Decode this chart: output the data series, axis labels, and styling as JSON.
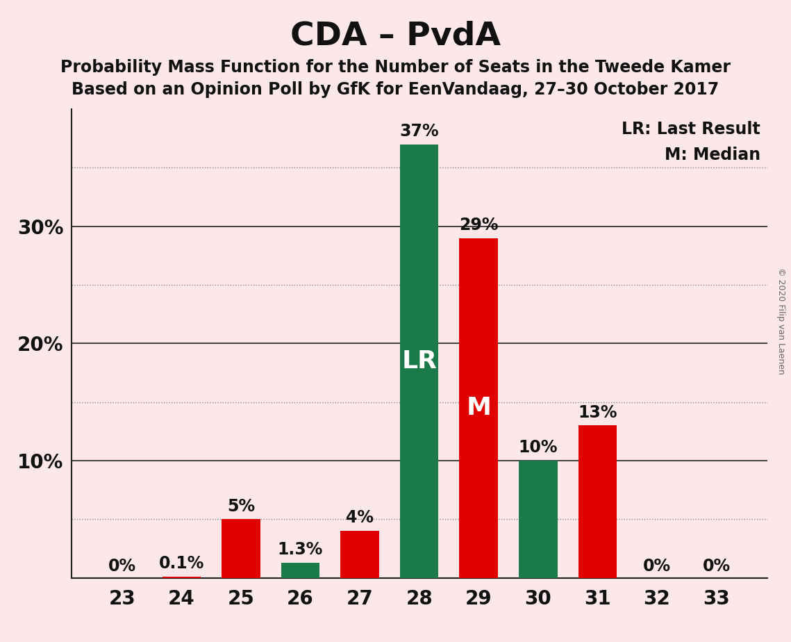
{
  "title": "CDA – PvdA",
  "subtitle1": "Probability Mass Function for the Number of Seats in the Tweede Kamer",
  "subtitle2": "Based on an Opinion Poll by GfK for EenVandaag, 27–30 October 2017",
  "copyright": "© 2020 Filip van Laenen",
  "categories": [
    23,
    24,
    25,
    26,
    27,
    28,
    29,
    30,
    31,
    32,
    33
  ],
  "values": [
    0.0,
    0.1,
    5.0,
    1.3,
    4.0,
    37.0,
    29.0,
    10.0,
    13.0,
    0.0,
    0.0
  ],
  "bar_colors": [
    "#e00000",
    "#e00000",
    "#e00000",
    "#1a7a4a",
    "#e00000",
    "#1a7a4a",
    "#e00000",
    "#1a7a4a",
    "#e00000",
    "#e00000",
    "#e00000"
  ],
  "bar_labels": [
    "0%",
    "0.1%",
    "5%",
    "1.3%",
    "4%",
    "37%",
    "29%",
    "10%",
    "13%",
    "0%",
    "0%"
  ],
  "lr_bar_index": 5,
  "m_bar_index": 6,
  "lr_label": "LR",
  "m_label": "M",
  "legend_lr": "LR: Last Result",
  "legend_m": "M: Median",
  "background_color": "#fce8e8",
  "ylim_max": 40,
  "solid_gridlines": [
    10,
    20,
    30
  ],
  "dotted_gridlines": [
    5,
    15,
    25,
    35
  ],
  "ytick_positions": [
    10,
    20,
    30
  ],
  "ytick_labels": [
    "10%",
    "20%",
    "30%"
  ],
  "grid_solid_color": "#222222",
  "grid_dotted_color": "#888888",
  "title_fontsize": 34,
  "subtitle_fontsize": 17,
  "bar_label_fontsize": 17,
  "bar_inner_label_fontsize": 26,
  "axis_tick_fontsize": 20,
  "legend_fontsize": 17
}
